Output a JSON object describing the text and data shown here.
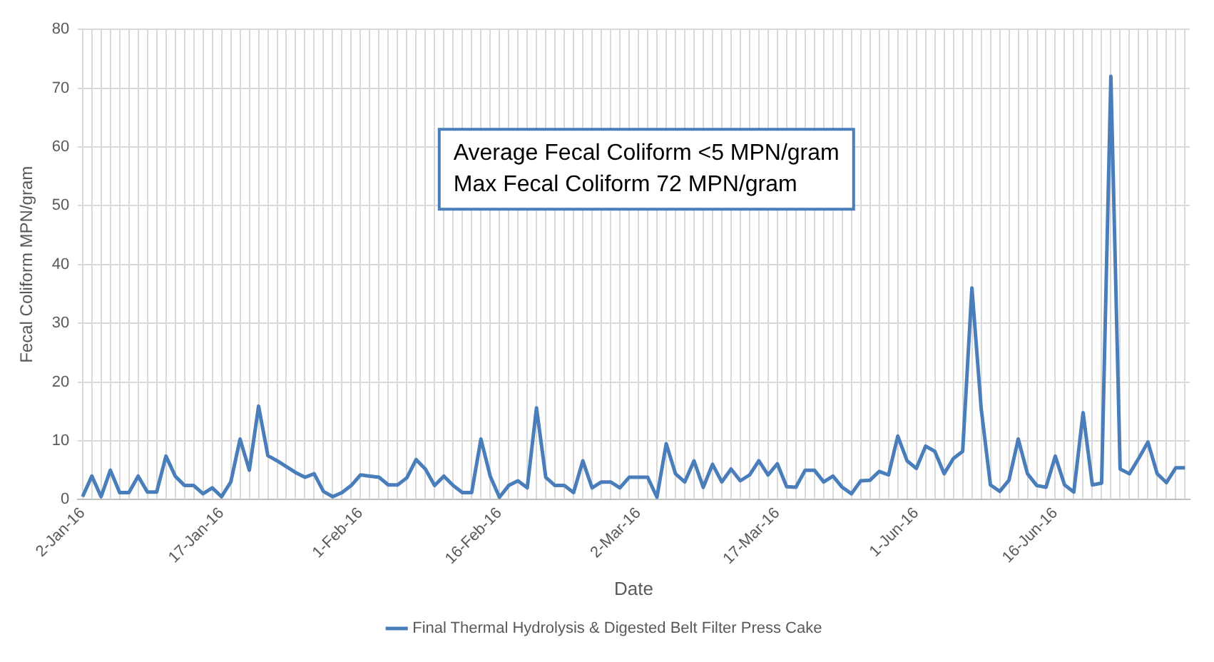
{
  "chart_data": {
    "type": "line",
    "xlabel": "Date",
    "ylabel": "Fecal Coliform MPN/gram",
    "categories": [
      "2-Jan-16",
      null,
      null,
      null,
      null,
      null,
      null,
      null,
      null,
      null,
      null,
      null,
      null,
      null,
      null,
      "17-Jan-16",
      null,
      null,
      null,
      null,
      null,
      null,
      null,
      null,
      null,
      null,
      null,
      null,
      null,
      null,
      "1-Feb-16",
      null,
      null,
      null,
      null,
      null,
      null,
      null,
      null,
      null,
      null,
      null,
      null,
      null,
      null,
      "16-Feb-16",
      null,
      null,
      null,
      null,
      null,
      null,
      null,
      null,
      null,
      null,
      null,
      null,
      null,
      null,
      "2-Mar-16",
      null,
      null,
      null,
      null,
      null,
      null,
      null,
      null,
      null,
      null,
      null,
      null,
      null,
      null,
      "17-Mar-16",
      null,
      null,
      null,
      null,
      null,
      null,
      null,
      null,
      null,
      null,
      null,
      null,
      null,
      null,
      "1-Jun-16",
      null,
      null,
      null,
      null,
      null,
      null,
      null,
      null,
      null,
      null,
      null,
      null,
      null,
      null,
      "16-Jun-16",
      null,
      null,
      null,
      null,
      null,
      null,
      null,
      null,
      null,
      null,
      null,
      null,
      null,
      null
    ],
    "series": [
      {
        "name": "Final Thermal Hydrolysis & Digested Belt Filter Press Cake",
        "color": "#4a7ebb",
        "values": [
          0.5,
          4,
          0.5,
          5,
          1.2,
          1.2,
          4,
          1.3,
          1.3,
          7.4,
          4,
          2.4,
          2.4,
          1,
          2,
          0.5,
          3,
          10.3,
          5,
          15.9,
          7.5,
          6.6,
          5.6,
          4.6,
          3.8,
          4.4,
          1.4,
          0.5,
          1.2,
          2.4,
          4.2,
          4,
          3.8,
          2.5,
          2.5,
          3.7,
          6.8,
          5.2,
          2.4,
          4,
          2.4,
          1.2,
          1.2,
          10.3,
          4,
          0.4,
          2.4,
          3.2,
          2,
          15.6,
          3.8,
          2.4,
          2.4,
          1.2,
          6.6,
          2,
          3,
          3,
          2,
          3.8,
          3.8,
          3.8,
          0.4,
          9.5,
          4.4,
          3,
          6.6,
          2.1,
          6,
          3,
          5.2,
          3.2,
          4.2,
          6.6,
          4.2,
          6.1,
          2.2,
          2.1,
          5,
          5,
          3,
          4,
          2.1,
          1,
          3.2,
          3.3,
          4.8,
          4.2,
          10.8,
          6.6,
          5.3,
          9.1,
          8.2,
          4.4,
          7,
          8.2,
          36,
          15.5,
          2.5,
          1.4,
          3.3,
          10.3,
          4.4,
          2.4,
          2.1,
          7.4,
          2.5,
          1.3,
          14.8,
          2.5,
          2.8,
          72,
          5.2,
          4.4,
          7,
          9.8,
          4.4,
          2.9,
          5.4,
          5.4
        ]
      }
    ],
    "ylim": [
      0,
      80
    ],
    "yticks": [
      0,
      10,
      20,
      30,
      40,
      50,
      60,
      70,
      80
    ],
    "grid": true,
    "legend": "bottom",
    "marker": "none",
    "line_style": "solid",
    "annotations": [
      "Average Fecal Coliform <5 MPN/gram",
      "Max Fecal Coliform 72 MPN/gram"
    ]
  }
}
